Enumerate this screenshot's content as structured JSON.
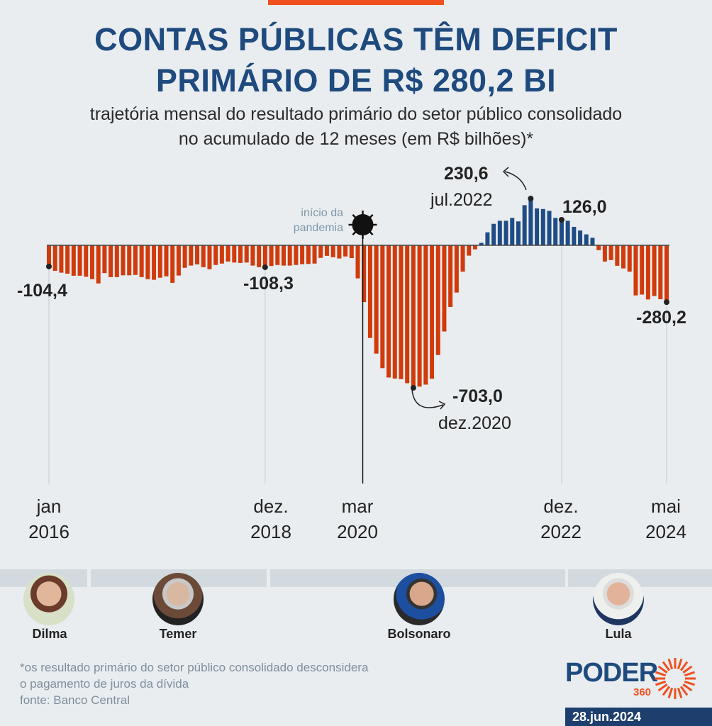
{
  "header": {
    "title_line1": "CONTAS PÚBLICAS TÊM DEFICIT",
    "title_line2": "PRIMÁRIO DE R$ 280,2 BI",
    "subtitle_line1": "trajetória mensal do resultado primário do setor público consolidado",
    "subtitle_line2": "no acumulado de 12 meses (em R$ bilhões)*"
  },
  "chart_data": {
    "type": "bar",
    "title": "trajetória mensal do resultado primário do setor público consolidado no acumulado de 12 meses (em R$ bilhões)*",
    "x_start": "jan 2016",
    "x_end": "mai 2024",
    "frequency": "monthly",
    "values": [
      -104.4,
      -126,
      -135,
      -140,
      -150,
      -150,
      -155,
      -167,
      -188,
      -137,
      -157,
      -157,
      -148,
      -148,
      -146,
      -157,
      -167,
      -170,
      -160,
      -153,
      -185,
      -149,
      -111,
      -100,
      -94,
      -108,
      -118,
      -97,
      -90,
      -80,
      -85,
      -87,
      -85,
      -100,
      -108,
      -108.3,
      -102,
      -97,
      -100,
      -100,
      -97,
      -93,
      -92,
      -90,
      -62,
      -52,
      -59,
      -65,
      -55,
      -63,
      -163,
      -280,
      -457,
      -534,
      -606,
      -652,
      -657,
      -660,
      -680,
      -703.0,
      -697,
      -687,
      -658,
      -541,
      -425,
      -304,
      -233,
      -130,
      -51,
      -20,
      12,
      64,
      106,
      121,
      121,
      135,
      118,
      198,
      230.6,
      182,
      179,
      170,
      135,
      126.0,
      121,
      91,
      73,
      54,
      37,
      -24,
      -80,
      -73,
      -101,
      -114,
      -130,
      -247,
      -243,
      -267,
      -250,
      -266,
      -280.2
    ],
    "colors": {
      "positive": "#1f4c86",
      "negative": "#d13a0a"
    },
    "ylim": [
      -703,
      231
    ],
    "x_ticks": [
      {
        "line1": "jan",
        "line2": "2016",
        "index": 0
      },
      {
        "line1": "dez.",
        "line2": "2018",
        "index": 35
      },
      {
        "line1": "mar",
        "line2": "2020",
        "index": 50
      },
      {
        "line1": "dez.",
        "line2": "2022",
        "index": 83
      },
      {
        "line1": "mai",
        "line2": "2024",
        "index": 100
      }
    ],
    "annotations": {
      "jan2016": {
        "value": "-104,4",
        "index": 0
      },
      "dez2018": {
        "value": "-108,3",
        "index": 35
      },
      "dez2020": {
        "value": "-703,0",
        "date": "dez.2020",
        "index": 59
      },
      "jul2022": {
        "value": "230,6",
        "date": "jul.2022",
        "index": 78
      },
      "dez2022": {
        "value": "126,0",
        "index": 83
      },
      "mai2024": {
        "value": "-280,2",
        "index": 100
      },
      "pandemic": {
        "text": "início da pandemia",
        "line1": "início da",
        "line2": "pandemia",
        "icon": "virus-icon",
        "index": 50
      }
    },
    "grid": false
  },
  "presidents": [
    {
      "name": "Dilma"
    },
    {
      "name": "Temer"
    },
    {
      "name": "Bolsonaro"
    },
    {
      "name": "Lula"
    }
  ],
  "footer": {
    "note_line1": "*os resultado primário do setor público consolidado desconsidera",
    "note_line2": "o pagamento de juros da dívida",
    "source": "fonte: Banco Central",
    "logo": "PODER",
    "logo_sub": "360",
    "date": "28.jun.2024"
  },
  "colors": {
    "title": "#1e4a7e",
    "accent": "#f0501e",
    "background": "#e9edf0"
  }
}
